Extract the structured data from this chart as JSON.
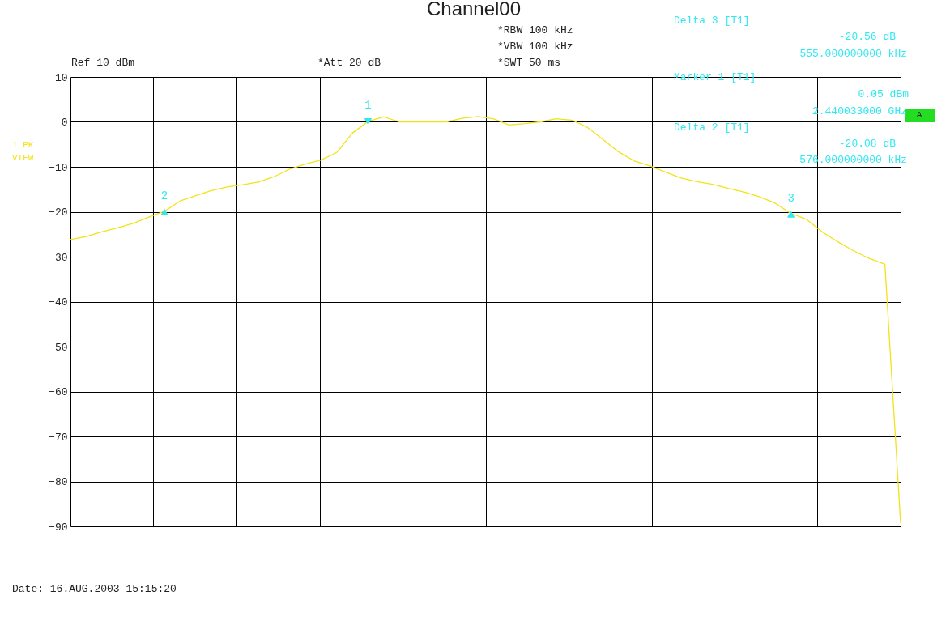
{
  "chart_data": {
    "type": "line",
    "title": "Channel00",
    "categories": [
      null,
      null,
      null,
      null,
      null,
      null,
      null,
      null,
      null,
      null,
      null,
      null,
      null,
      null,
      null,
      null,
      null,
      null,
      null,
      null,
      null,
      null,
      null,
      null,
      null,
      null,
      null,
      null,
      null,
      null,
      null,
      null,
      null,
      null,
      null,
      null,
      null,
      null,
      null,
      null,
      null,
      null,
      null,
      null,
      null,
      null,
      null,
      null,
      null,
      null,
      null,
      null,
      null,
      null
    ],
    "series": [
      {
        "color": "#f2e318",
        "values": [
          -26.2,
          -25.5,
          -24.5,
          -23.6,
          -22.6,
          -21.2,
          -19.9,
          -17.6,
          -16.4,
          -15.3,
          -14.5,
          -14,
          -13.4,
          -12.2,
          -10.5,
          -9.4,
          -8.5,
          -6.8,
          -2.5,
          0.1,
          1.1,
          0,
          0,
          0,
          0,
          0.8,
          1.2,
          0.7,
          -0.7,
          -0.4,
          0,
          0.7,
          0.4,
          -1.2,
          -3.9,
          -6.7,
          -8.7,
          -9.8,
          -11.2,
          -12.5,
          -13.3,
          -13.9,
          -14.8,
          -15.6,
          -16.7,
          -18.1,
          -20.4,
          -21.7,
          -24.5,
          -26.7,
          -28.7,
          -30.4,
          -31.7,
          -89.3
        ]
      }
    ],
    "ylim": [
      -90,
      10
    ],
    "yticks": [
      10,
      0,
      -10,
      -20,
      -30,
      -40,
      -50,
      -60,
      -70,
      -80,
      -90
    ],
    "grid": true,
    "marker": "none",
    "line_style": "solid",
    "annotations": [
      "Ref  10 dBm",
      "*Att  20 dB",
      "*RBW 100 kHz",
      "*VBW 100 kHz",
      "*SWT 50 ms",
      "Delta 3 [T1]",
      "-20.56 dB",
      "555.000000000 kHz",
      "Marker 1 [T1]",
      "0.05 dBm",
      "2.440033000 GHz",
      "Delta 2 [T1]",
      "-20.08 dB",
      "-576.000000000 kHz",
      "1 PK",
      "VIEW",
      "A",
      "Date:      16.AUG.2003   15:15:20",
      {
        "text": "1",
        "y": 0.05
      },
      {
        "text": "2",
        "y": -20.08
      },
      {
        "text": "3",
        "y": -20.56
      }
    ]
  }
}
